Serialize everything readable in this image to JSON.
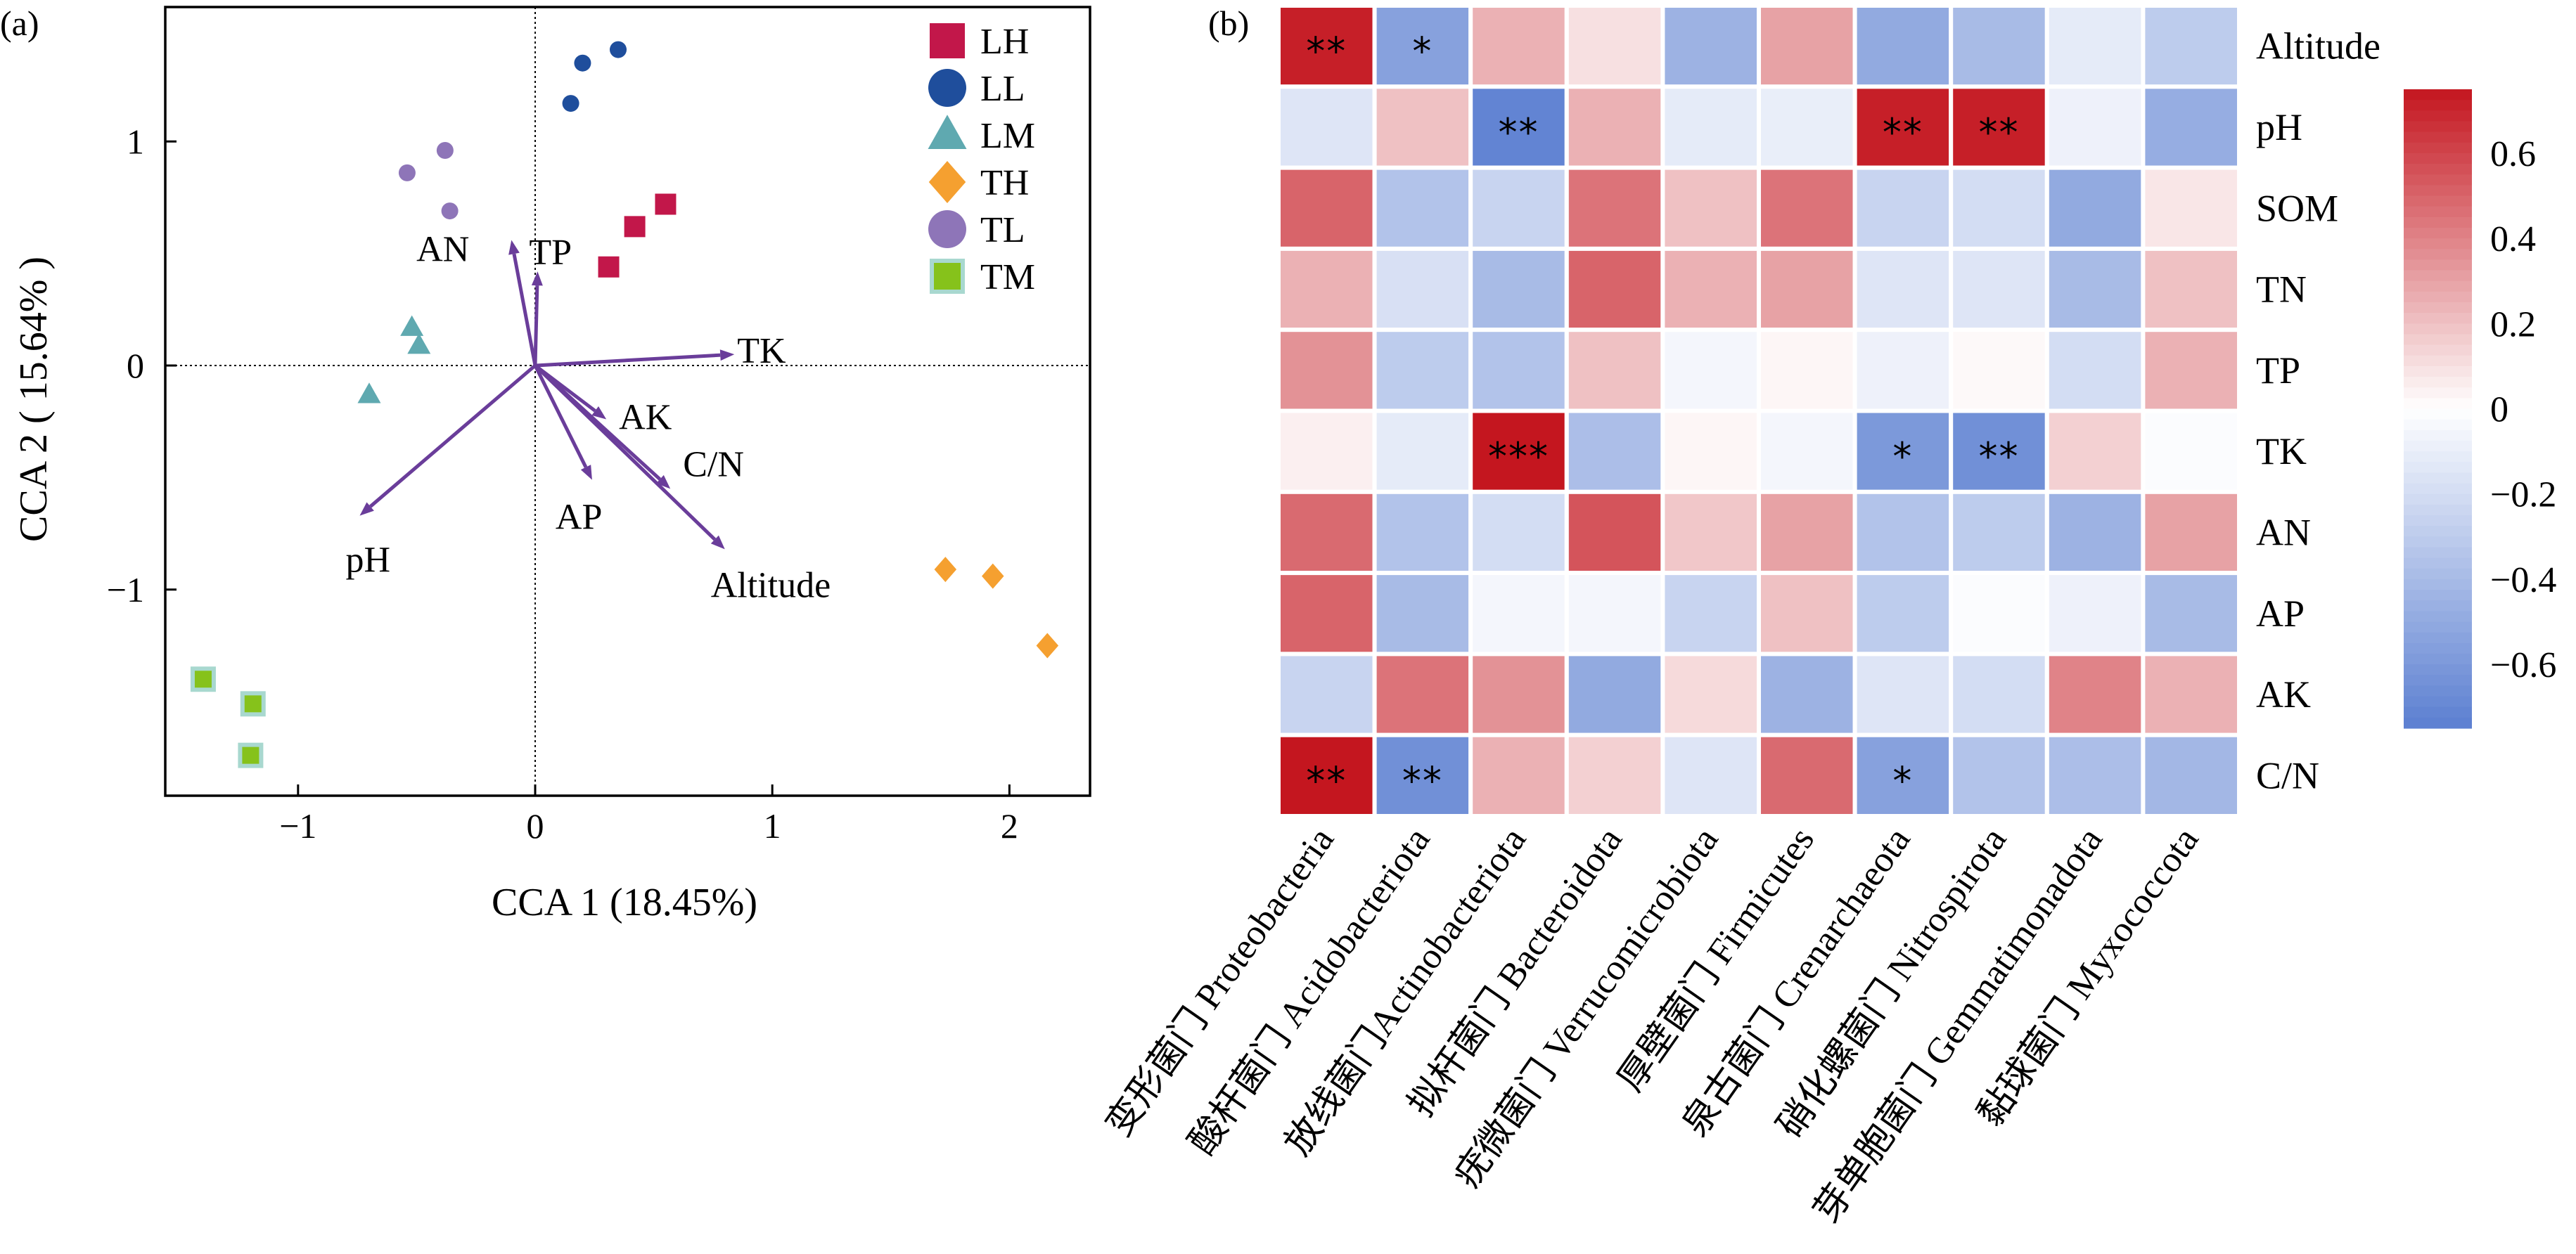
{
  "panels": {
    "cca": {
      "label": "(a)",
      "xlabel": "CCA 1 (18.45%)",
      "ylabel": "CCA 2 ( 15.64% )"
    },
    "heatmap": {
      "label": "(b)"
    }
  },
  "chart_data": [
    {
      "type": "scatter",
      "xlim": [
        -1.56,
        2.34
      ],
      "ylim": [
        -1.92,
        1.6
      ],
      "xticks": [
        -1,
        0,
        1,
        2
      ],
      "yticks": [
        -1,
        0,
        1
      ],
      "xticklabels": [
        "−1",
        "0",
        "1",
        "2"
      ],
      "yticklabels": [
        "−1",
        "0",
        "1"
      ],
      "reference_lines": {
        "x": 0,
        "y": 0,
        "style": "dotted"
      },
      "arrow_color": "#6a3d9a",
      "legend_position": "top-right",
      "series": [
        {
          "name": "LH",
          "marker": "square",
          "color": "#c2174a",
          "points": [
            [
              0.31,
              0.44
            ],
            [
              0.42,
              0.62
            ],
            [
              0.55,
              0.72
            ]
          ]
        },
        {
          "name": "LL",
          "marker": "circle",
          "color": "#1f4e9c",
          "points": [
            [
              0.15,
              1.17
            ],
            [
              0.2,
              1.35
            ],
            [
              0.35,
              1.41
            ]
          ]
        },
        {
          "name": "LM",
          "marker": "triangle",
          "color": "#5fa9b0",
          "points": [
            [
              -0.52,
              0.17
            ],
            [
              -0.49,
              0.09
            ],
            [
              -0.7,
              -0.13
            ]
          ]
        },
        {
          "name": "TH",
          "marker": "diamond",
          "color": "#f5a030",
          "points": [
            [
              1.73,
              -0.91
            ],
            [
              1.93,
              -0.94
            ],
            [
              2.16,
              -1.25
            ]
          ]
        },
        {
          "name": "TL",
          "marker": "circle",
          "color": "#8e75b8",
          "points": [
            [
              -0.54,
              0.86
            ],
            [
              -0.38,
              0.96
            ],
            [
              -0.36,
              0.69
            ]
          ]
        },
        {
          "name": "TM",
          "marker": "square-outlined",
          "color": "#86c21b",
          "edge": "#a8d8cf",
          "points": [
            [
              -1.4,
              -1.4
            ],
            [
              -1.19,
              -1.51
            ],
            [
              -1.2,
              -1.74
            ]
          ]
        }
      ],
      "arrows": [
        {
          "label": "AN",
          "x": -0.1,
          "y": 0.56
        },
        {
          "label": "TP",
          "x": 0.01,
          "y": 0.42
        },
        {
          "label": "TK",
          "x": 0.84,
          "y": 0.05
        },
        {
          "label": "AK",
          "x": 0.3,
          "y": -0.24
        },
        {
          "label": "C/N",
          "x": 0.57,
          "y": -0.55
        },
        {
          "label": "AP",
          "x": 0.24,
          "y": -0.51
        },
        {
          "label": "pH",
          "x": -0.74,
          "y": -0.67
        },
        {
          "label": "Altitude",
          "x": 0.8,
          "y": -0.82
        }
      ]
    },
    {
      "type": "heatmap",
      "rows": [
        "Altitude",
        "pH",
        "SOM",
        "TN",
        "TP",
        "TK",
        "AN",
        "AP",
        "AK",
        "C/N"
      ],
      "columns": [
        "变形菌门 Proteobacteria",
        "酸杆菌门 Acidobacteriota",
        "放线菌门Actinobacteriota",
        "拟杆菌门 Bacteroidota",
        "疣微菌门 Verrucomicrobiota",
        "厚壁菌门 Firmicutes",
        "泉古菌门 Crenarchaeota",
        "硝化螺菌门 Nitrospirota",
        "芽单胞菌门 Gemmatimonadota",
        "黏球菌门 Myxococcota"
      ],
      "values": [
        [
          0.72,
          -0.55,
          0.25,
          0.1,
          -0.45,
          0.3,
          -0.5,
          -0.4,
          -0.12,
          -0.3
        ],
        [
          -0.15,
          0.2,
          -0.72,
          0.25,
          -0.12,
          -0.1,
          0.72,
          0.72,
          -0.08,
          -0.48
        ],
        [
          0.5,
          -0.35,
          -0.25,
          0.45,
          0.2,
          0.45,
          -0.25,
          -0.2,
          -0.5,
          0.08
        ],
        [
          0.25,
          -0.18,
          -0.4,
          0.5,
          0.25,
          0.3,
          -0.15,
          -0.15,
          -0.4,
          0.2
        ],
        [
          0.35,
          -0.3,
          -0.35,
          0.2,
          -0.05,
          0.03,
          -0.08,
          0.02,
          -0.2,
          0.25
        ],
        [
          0.05,
          -0.12,
          0.78,
          -0.38,
          0.03,
          -0.05,
          -0.6,
          -0.65,
          0.15,
          -0.02
        ],
        [
          0.48,
          -0.35,
          -0.2,
          0.55,
          0.18,
          0.3,
          -0.35,
          -0.3,
          -0.45,
          0.3
        ],
        [
          0.5,
          -0.4,
          -0.05,
          -0.05,
          -0.25,
          0.2,
          -0.3,
          -0.02,
          -0.08,
          -0.4
        ],
        [
          -0.25,
          0.45,
          0.35,
          -0.5,
          0.12,
          -0.45,
          -0.15,
          -0.2,
          0.4,
          0.25
        ],
        [
          0.75,
          -0.65,
          0.25,
          0.15,
          -0.15,
          0.48,
          -0.55,
          -0.35,
          -0.38,
          -0.42
        ]
      ],
      "significance": [
        [
          "**",
          "*",
          "",
          "",
          "",
          "",
          "",
          "",
          "",
          ""
        ],
        [
          "",
          "",
          "**",
          "",
          "",
          "",
          "**",
          "**",
          "",
          ""
        ],
        [
          "",
          "",
          "",
          "",
          "",
          "",
          "",
          "",
          "",
          ""
        ],
        [
          "",
          "",
          "",
          "",
          "",
          "",
          "",
          "",
          "",
          ""
        ],
        [
          "",
          "",
          "",
          "",
          "",
          "",
          "",
          "",
          "",
          ""
        ],
        [
          "",
          "",
          "***",
          "",
          "",
          "",
          "*",
          "**",
          "",
          ""
        ],
        [
          "",
          "",
          "",
          "",
          "",
          "",
          "",
          "",
          "",
          ""
        ],
        [
          "",
          "",
          "",
          "",
          "",
          "",
          "",
          "",
          "",
          ""
        ],
        [
          "",
          "",
          "",
          "",
          "",
          "",
          "",
          "",
          "",
          ""
        ],
        [
          "**",
          "**",
          "",
          "",
          "",
          "",
          "*",
          "",
          "",
          ""
        ]
      ],
      "colorbar": {
        "range": [
          -0.75,
          0.75
        ],
        "ticks": [
          0.6,
          0.4,
          0.2,
          0,
          -0.2,
          -0.4,
          -0.6
        ],
        "ticklabels": [
          "0.6",
          "0.4",
          "0.2",
          "0",
          "−0.2",
          "−0.4",
          "−0.6"
        ],
        "low_color": "#5b7fd1",
        "mid_color": "#ffffff",
        "high_color": "#c4161f"
      }
    }
  ]
}
